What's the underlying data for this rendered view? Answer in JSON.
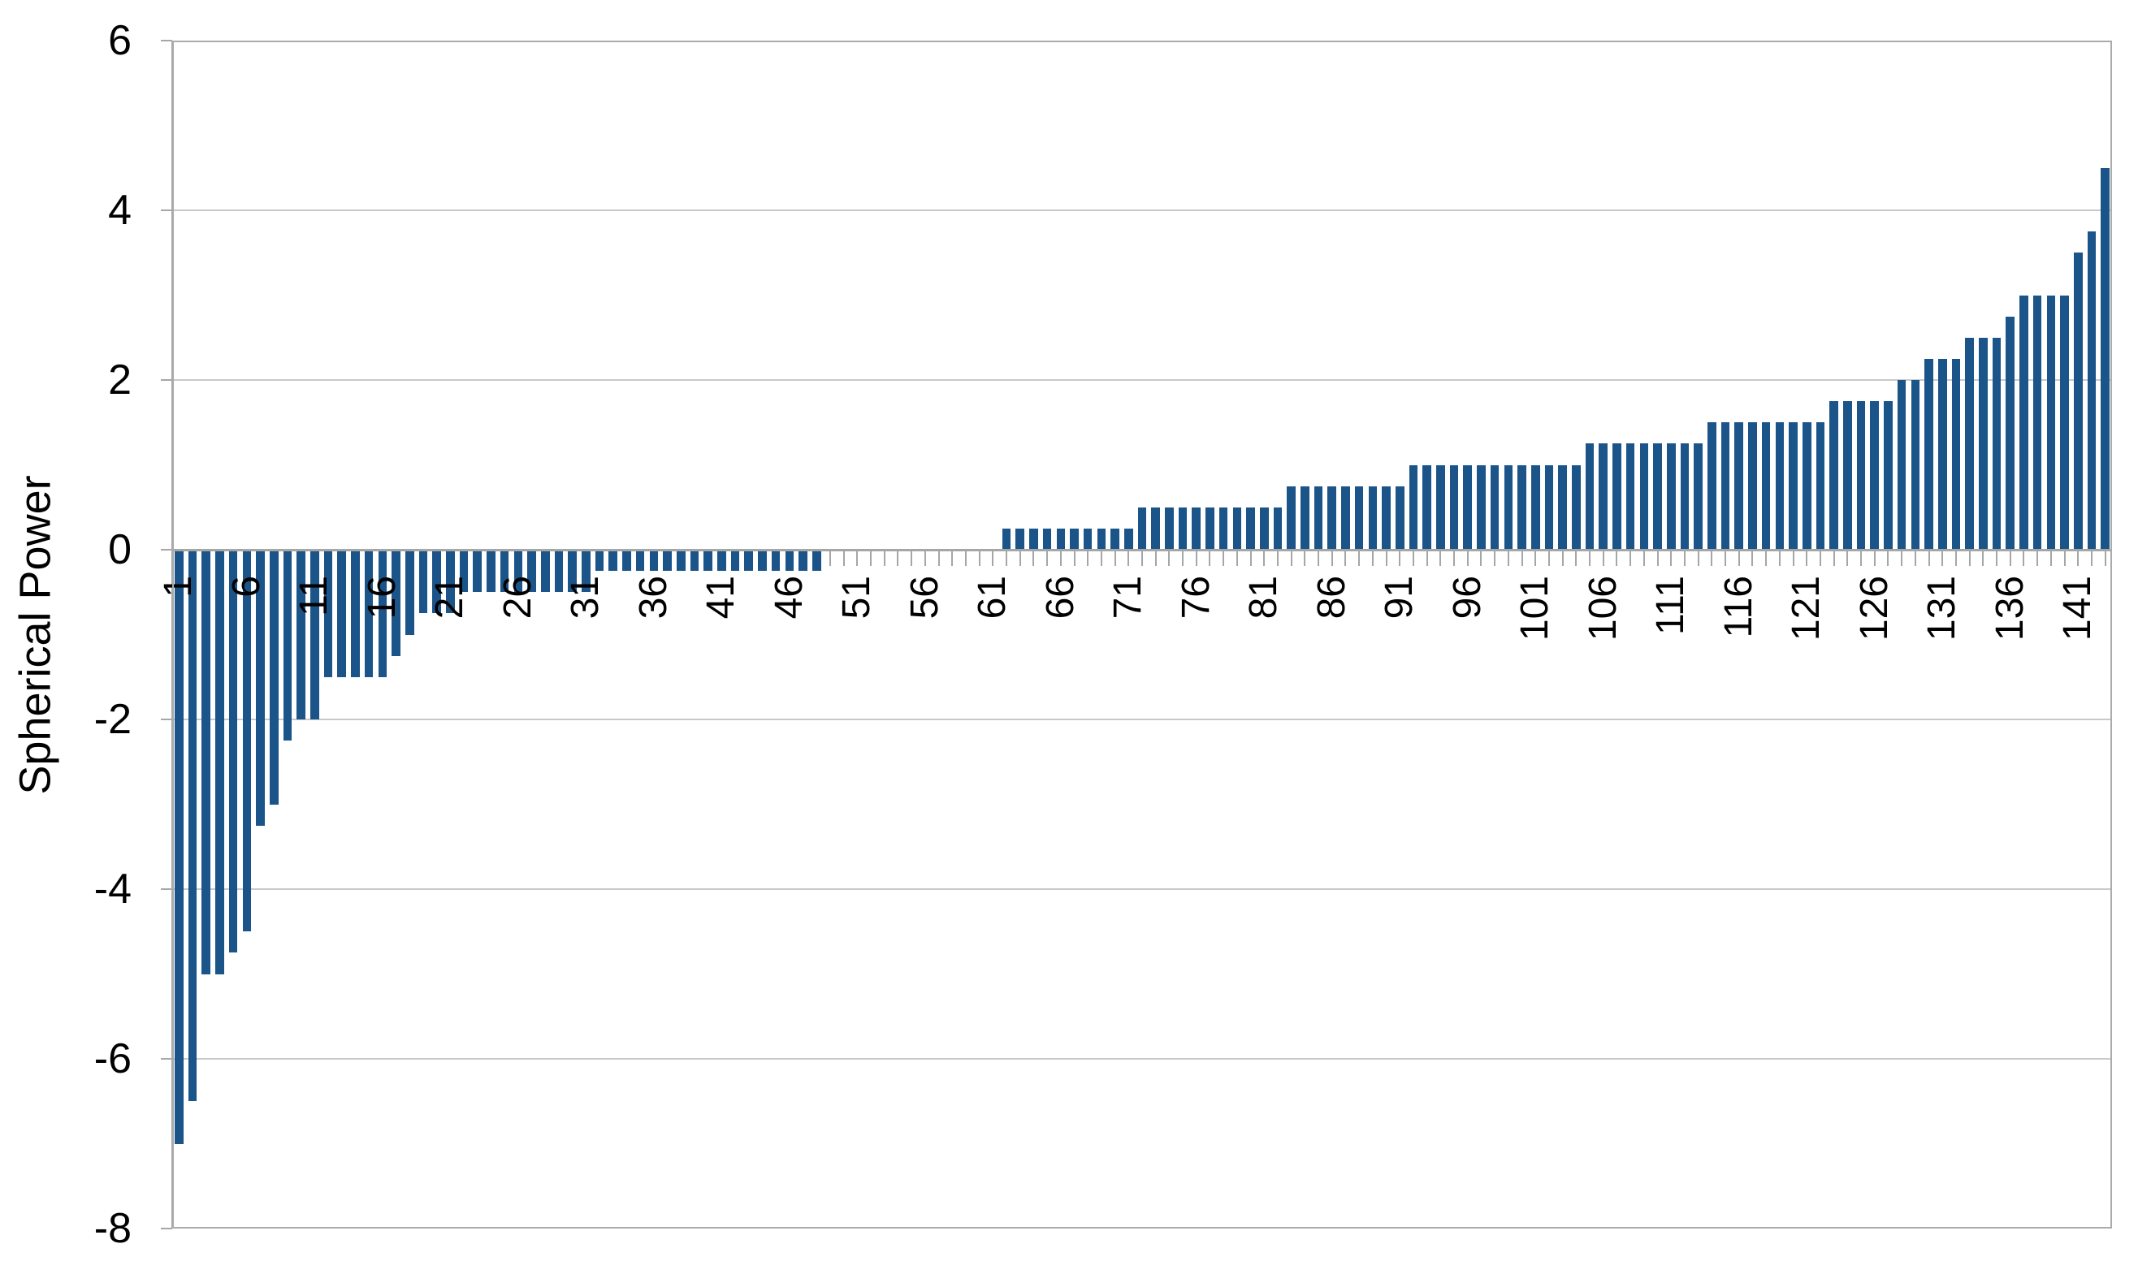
{
  "y_axis": {
    "title": "Spherical Power",
    "tick_labels": [
      "6",
      "4",
      "2",
      "0",
      "-2",
      "-4",
      "-6",
      "-8"
    ],
    "min": -8,
    "max": 6,
    "step": 2
  },
  "x_axis": {
    "tick_labels": [
      "1",
      "6",
      "11",
      "16",
      "21",
      "26",
      "31",
      "36",
      "41",
      "46",
      "51",
      "56",
      "61",
      "66",
      "71",
      "76",
      "81",
      "86",
      "91",
      "96",
      "101",
      "106",
      "111",
      "116",
      "121",
      "126",
      "131",
      "136",
      "141"
    ],
    "label_interval": 5
  },
  "chart_data": {
    "type": "bar",
    "title": "",
    "xlabel": "",
    "ylabel": "Spherical Power",
    "ylim": [
      -8,
      6
    ],
    "y_tick_step": 2,
    "grid": true,
    "legend": false,
    "n_bars": 143,
    "x_range": [
      1,
      143
    ],
    "bar_color": "#1B5489",
    "gridline_color": "#C9C9C9",
    "axis_color": "#A6A6A6",
    "values": [
      -7,
      -6.5,
      -5,
      -5,
      -4.75,
      -4.5,
      -3.25,
      -3,
      -2.25,
      -2,
      -2,
      -1.5,
      -1.5,
      -1.5,
      -1.5,
      -1.5,
      -1.25,
      -1,
      -0.75,
      -0.75,
      -0.75,
      -0.5,
      -0.5,
      -0.5,
      -0.5,
      -0.5,
      -0.5,
      -0.5,
      -0.5,
      -0.5,
      -0.5,
      -0.25,
      -0.25,
      -0.25,
      -0.25,
      -0.25,
      -0.25,
      -0.25,
      -0.25,
      -0.25,
      -0.25,
      -0.25,
      -0.25,
      -0.25,
      -0.25,
      -0.25,
      -0.25,
      -0.25,
      0,
      0,
      0,
      0,
      0,
      0,
      0,
      0,
      0,
      0,
      0,
      0,
      0,
      0.25,
      0.25,
      0.25,
      0.25,
      0.25,
      0.25,
      0.25,
      0.25,
      0.25,
      0.25,
      0.5,
      0.5,
      0.5,
      0.5,
      0.5,
      0.5,
      0.5,
      0.5,
      0.5,
      0.5,
      0.5,
      0.75,
      0.75,
      0.75,
      0.75,
      0.75,
      0.75,
      0.75,
      0.75,
      0.75,
      1,
      1,
      1,
      1,
      1,
      1,
      1,
      1,
      1,
      1,
      1,
      1,
      1,
      1.25,
      1.25,
      1.25,
      1.25,
      1.25,
      1.25,
      1.25,
      1.25,
      1.25,
      1.5,
      1.5,
      1.5,
      1.5,
      1.5,
      1.5,
      1.5,
      1.5,
      1.5,
      1.75,
      1.75,
      1.75,
      1.75,
      1.75,
      2,
      2,
      2.25,
      2.25,
      2.25,
      2.5,
      2.5,
      2.5,
      2.75,
      3,
      3,
      3,
      3,
      3.5,
      3.75,
      4.5
    ]
  }
}
